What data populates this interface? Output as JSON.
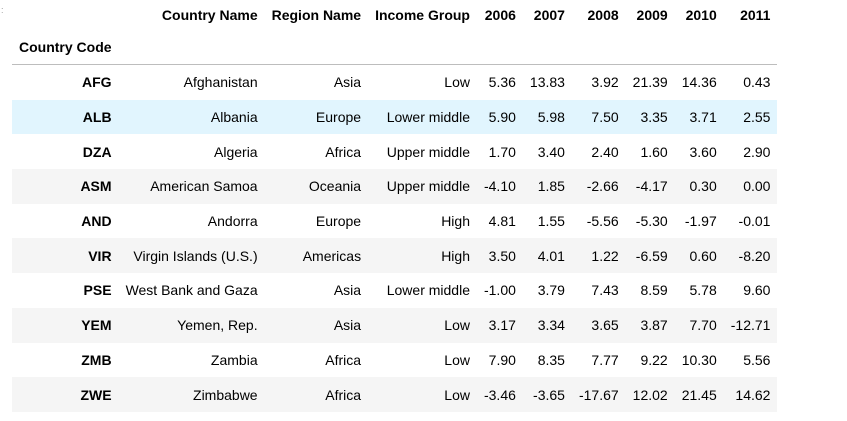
{
  "gutter_marker": ":",
  "table": {
    "index_name": "Country Code",
    "columns": [
      "Country Name",
      "Region Name",
      "Income Group",
      "2006",
      "2007",
      "2008",
      "2009",
      "2010",
      "2011"
    ],
    "rows": [
      {
        "code": "AFG",
        "cells": [
          "Afghanistan",
          "Asia",
          "Low",
          "5.36",
          "13.83",
          "3.92",
          "21.39",
          "14.36",
          "0.43"
        ]
      },
      {
        "code": "ALB",
        "cells": [
          "Albania",
          "Europe",
          "Lower middle",
          "5.90",
          "5.98",
          "7.50",
          "3.35",
          "3.71",
          "2.55"
        ]
      },
      {
        "code": "DZA",
        "cells": [
          "Algeria",
          "Africa",
          "Upper middle",
          "1.70",
          "3.40",
          "2.40",
          "1.60",
          "3.60",
          "2.90"
        ]
      },
      {
        "code": "ASM",
        "cells": [
          "American Samoa",
          "Oceania",
          "Upper middle",
          "-4.10",
          "1.85",
          "-2.66",
          "-4.17",
          "0.30",
          "0.00"
        ]
      },
      {
        "code": "AND",
        "cells": [
          "Andorra",
          "Europe",
          "High",
          "4.81",
          "1.55",
          "-5.56",
          "-5.30",
          "-1.97",
          "-0.01"
        ]
      },
      {
        "code": "VIR",
        "cells": [
          "Virgin Islands (U.S.)",
          "Americas",
          "High",
          "3.50",
          "4.01",
          "1.22",
          "-6.59",
          "0.60",
          "-8.20"
        ]
      },
      {
        "code": "PSE",
        "cells": [
          "West Bank and Gaza",
          "Asia",
          "Lower middle",
          "-1.00",
          "3.79",
          "7.43",
          "8.59",
          "5.78",
          "9.60"
        ]
      },
      {
        "code": "YEM",
        "cells": [
          "Yemen, Rep.",
          "Asia",
          "Low",
          "3.17",
          "3.34",
          "3.65",
          "3.87",
          "7.70",
          "-12.71"
        ]
      },
      {
        "code": "ZMB",
        "cells": [
          "Zambia",
          "Africa",
          "Low",
          "7.90",
          "8.35",
          "7.77",
          "9.22",
          "10.30",
          "5.56"
        ]
      },
      {
        "code": "ZWE",
        "cells": [
          "Zimbabwe",
          "Africa",
          "Low",
          "-3.46",
          "-3.65",
          "-17.67",
          "12.02",
          "21.45",
          "14.62"
        ]
      }
    ],
    "hovered_row_code": "ALB"
  },
  "colors": {
    "hover_row": "#e1f5fe",
    "striped_row": "#f5f5f5",
    "header_rule": "#bdbdbd"
  }
}
